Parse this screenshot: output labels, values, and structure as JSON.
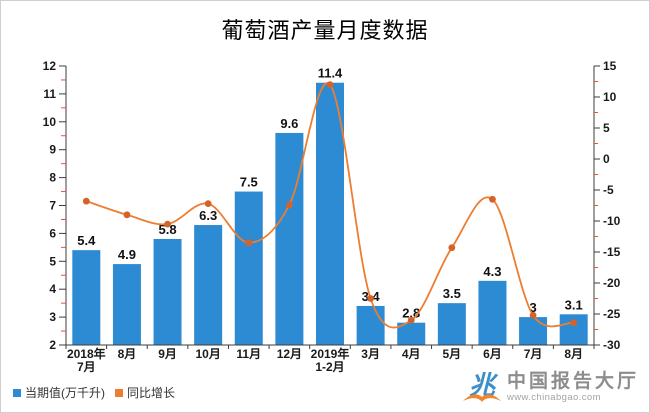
{
  "title": "葡萄酒产量月度数据",
  "legend": [
    {
      "label": "当期值(万千升)",
      "color": "#2D8BD4"
    },
    {
      "label": "同比增长",
      "color": "#ED7D31"
    }
  ],
  "watermark": {
    "brand": "中国报告大厅",
    "url": "www.chinabgao.com"
  },
  "colors": {
    "bar": "#2D8BD4",
    "line": "#ED7D31",
    "marker": "#D4632A",
    "axis": "#3c3c3c",
    "major_tick": "#3c3c3c",
    "minor_tick": "#E8503A",
    "tick_label": "#1a1a1a",
    "data_label": "#111111"
  },
  "chart_data": {
    "type": "bar+line",
    "title": "葡萄酒产量月度数据",
    "categories": [
      [
        "2018年",
        "7月"
      ],
      [
        "8月"
      ],
      [
        "9月"
      ],
      [
        "10月"
      ],
      [
        "11月"
      ],
      [
        "12月"
      ],
      [
        "2019年",
        "1-2月"
      ],
      [
        "3月"
      ],
      [
        "4月"
      ],
      [
        "5月"
      ],
      [
        "6月"
      ],
      [
        "7月"
      ],
      [
        "8月"
      ]
    ],
    "series": [
      {
        "name": "当期值(万千升)",
        "type": "bar",
        "axis": "left",
        "values": [
          5.4,
          4.9,
          5.8,
          6.3,
          7.5,
          9.6,
          11.4,
          3.4,
          2.8,
          3.5,
          4.3,
          3,
          3.1
        ],
        "data_labels": [
          "5.4",
          "4.9",
          "5.8",
          "6.3",
          "7.5",
          "9.6",
          "11.4",
          "3.4",
          "2.8",
          "3.5",
          "4.3",
          "3",
          "3.1"
        ]
      },
      {
        "name": "同比增长",
        "type": "line",
        "axis": "right",
        "smoothed": true,
        "values": [
          -6.8,
          -9,
          -10.5,
          -7.2,
          -13.5,
          -7.4,
          12,
          -22.5,
          -26,
          -14.3,
          -6.5,
          -25.2,
          -26.4
        ]
      }
    ],
    "left_axis": {
      "min": 2,
      "max": 12,
      "step": 1,
      "minor_step": 0.5
    },
    "right_axis": {
      "min": -30,
      "max": 15,
      "step": 5,
      "minor_step": 2.5
    },
    "grid": false,
    "legend_position": "bottom-left"
  }
}
